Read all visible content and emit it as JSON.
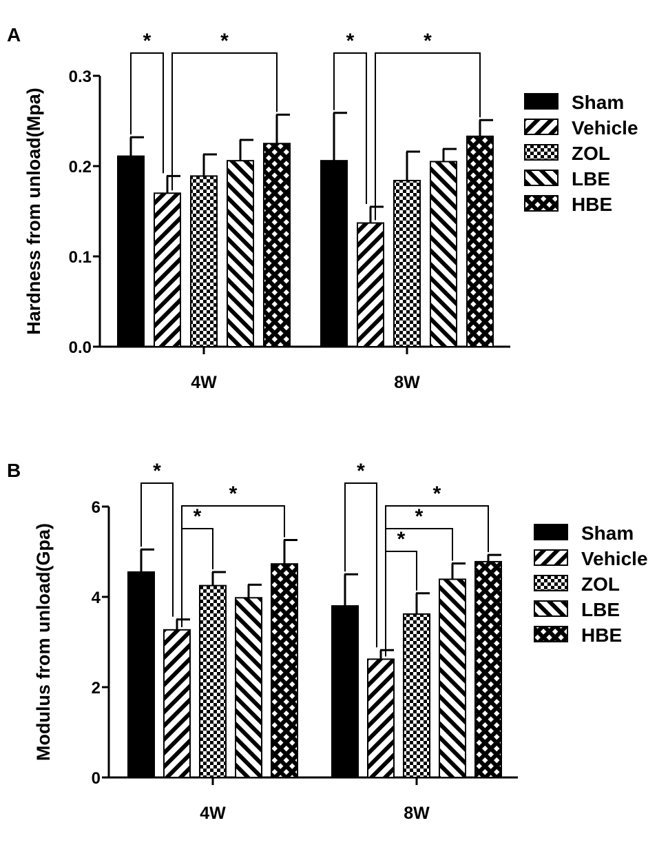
{
  "colors": {
    "ink": "#000000",
    "background": "#ffffff"
  },
  "legend": [
    "Sham",
    "Vehicle",
    "ZOL",
    "LBE",
    "HBE"
  ],
  "patterns": [
    "solid",
    "diag-down",
    "checker",
    "diag-up",
    "crosshatch"
  ],
  "chart_data": [
    {
      "panel": "A",
      "type": "bar",
      "ylabel": "Hardness from unload(Mpa)",
      "ylim": [
        0,
        0.3
      ],
      "yticks": [
        "0.0",
        "0.1",
        "0.2",
        "0.3"
      ],
      "ytick_values": [
        0,
        0.1,
        0.2,
        0.3
      ],
      "categories": [
        "4W",
        "8W"
      ],
      "series": [
        {
          "name": "Sham",
          "values": [
            0.211,
            0.206
          ],
          "errors": [
            0.021,
            0.053
          ]
        },
        {
          "name": "Vehicle",
          "values": [
            0.17,
            0.137
          ],
          "errors": [
            0.019,
            0.018
          ]
        },
        {
          "name": "ZOL",
          "values": [
            0.189,
            0.184
          ],
          "errors": [
            0.024,
            0.032
          ]
        },
        {
          "name": "LBE",
          "values": [
            0.206,
            0.205
          ],
          "errors": [
            0.023,
            0.014
          ]
        },
        {
          "name": "HBE",
          "values": [
            0.225,
            0.233
          ],
          "errors": [
            0.032,
            0.018
          ]
        }
      ],
      "significance": [
        {
          "group": 0,
          "from": 0,
          "to": 1,
          "label": "*"
        },
        {
          "group": 0,
          "from": 1,
          "to": 4,
          "label": "*"
        },
        {
          "group": 1,
          "from": 0,
          "to": 1,
          "label": "*"
        },
        {
          "group": 1,
          "from": 1,
          "to": 4,
          "label": "*"
        }
      ]
    },
    {
      "panel": "B",
      "type": "bar",
      "ylabel": "Modulus from unload(Gpa)",
      "ylim": [
        0,
        6
      ],
      "yticks": [
        "0",
        "2",
        "4",
        "6"
      ],
      "ytick_values": [
        0,
        2,
        4,
        6
      ],
      "categories": [
        "4W",
        "8W"
      ],
      "series": [
        {
          "name": "Sham",
          "values": [
            4.55,
            3.8
          ],
          "errors": [
            0.5,
            0.7
          ]
        },
        {
          "name": "Vehicle",
          "values": [
            3.27,
            2.62
          ],
          "errors": [
            0.23,
            0.2
          ]
        },
        {
          "name": "ZOL",
          "values": [
            4.25,
            3.62
          ],
          "errors": [
            0.3,
            0.46
          ]
        },
        {
          "name": "LBE",
          "values": [
            3.98,
            4.39
          ],
          "errors": [
            0.29,
            0.35
          ]
        },
        {
          "name": "HBE",
          "values": [
            4.73,
            4.78
          ],
          "errors": [
            0.53,
            0.15
          ]
        }
      ],
      "significance": [
        {
          "group": 0,
          "from": 0,
          "to": 1,
          "label": "*"
        },
        {
          "group": 0,
          "from": 1,
          "to": 4,
          "label": "*"
        },
        {
          "group": 0,
          "from": 1,
          "to": 2,
          "label": "*"
        },
        {
          "group": 1,
          "from": 0,
          "to": 1,
          "label": "*"
        },
        {
          "group": 1,
          "from": 1,
          "to": 4,
          "label": "*"
        },
        {
          "group": 1,
          "from": 1,
          "to": 3,
          "label": "*"
        },
        {
          "group": 1,
          "from": 1,
          "to": 2,
          "label": "*"
        }
      ]
    }
  ]
}
